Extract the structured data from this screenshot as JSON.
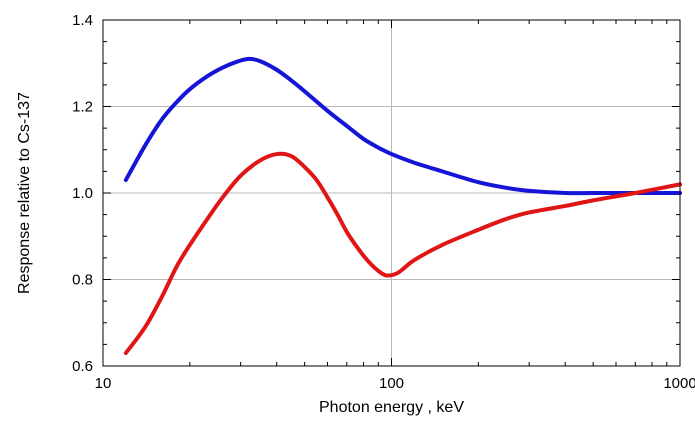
{
  "chart_data": {
    "type": "line",
    "title": "",
    "xlabel": "Photon energy , keV",
    "ylabel": "Response relative to Cs-137",
    "xscale": "log",
    "xlim": [
      10,
      1000
    ],
    "ylim": [
      0.6,
      1.4
    ],
    "grid": true,
    "legend": "none",
    "x_tick_labels": [
      {
        "value": 10,
        "label": "10"
      },
      {
        "value": 100,
        "label": "100"
      },
      {
        "value": 1000,
        "label": "1000"
      }
    ],
    "y_tick_labels": [
      {
        "value": 0.6,
        "label": "0.6"
      },
      {
        "value": 0.8,
        "label": "0.8"
      },
      {
        "value": 1.0,
        "label": "1.0"
      },
      {
        "value": 1.2,
        "label": "1.2"
      },
      {
        "value": 1.4,
        "label": "1.4"
      }
    ],
    "series": [
      {
        "color": "#1515d8",
        "points": [
          [
            12,
            1.03
          ],
          [
            14,
            1.11
          ],
          [
            16,
            1.17
          ],
          [
            18,
            1.21
          ],
          [
            20,
            1.24
          ],
          [
            23,
            1.27
          ],
          [
            26,
            1.29
          ],
          [
            29,
            1.303
          ],
          [
            32,
            1.31
          ],
          [
            35,
            1.305
          ],
          [
            40,
            1.285
          ],
          [
            45,
            1.26
          ],
          [
            50,
            1.235
          ],
          [
            60,
            1.19
          ],
          [
            70,
            1.155
          ],
          [
            80,
            1.125
          ],
          [
            90,
            1.105
          ],
          [
            100,
            1.09
          ],
          [
            120,
            1.07
          ],
          [
            150,
            1.05
          ],
          [
            200,
            1.025
          ],
          [
            250,
            1.012
          ],
          [
            300,
            1.005
          ],
          [
            400,
            1.0
          ],
          [
            500,
            1.0
          ],
          [
            700,
            1.0
          ],
          [
            1000,
            1.0
          ]
        ]
      },
      {
        "color": "#e01515",
        "points": [
          [
            12,
            0.63
          ],
          [
            14,
            0.69
          ],
          [
            16,
            0.76
          ],
          [
            18,
            0.83
          ],
          [
            20,
            0.88
          ],
          [
            23,
            0.94
          ],
          [
            26,
            0.99
          ],
          [
            30,
            1.04
          ],
          [
            35,
            1.075
          ],
          [
            40,
            1.09
          ],
          [
            45,
            1.085
          ],
          [
            50,
            1.06
          ],
          [
            55,
            1.03
          ],
          [
            60,
            0.99
          ],
          [
            65,
            0.95
          ],
          [
            70,
            0.91
          ],
          [
            75,
            0.88
          ],
          [
            80,
            0.855
          ],
          [
            85,
            0.835
          ],
          [
            90,
            0.82
          ],
          [
            95,
            0.81
          ],
          [
            100,
            0.81
          ],
          [
            105,
            0.815
          ],
          [
            110,
            0.825
          ],
          [
            120,
            0.845
          ],
          [
            150,
            0.88
          ],
          [
            200,
            0.915
          ],
          [
            250,
            0.94
          ],
          [
            300,
            0.955
          ],
          [
            400,
            0.97
          ],
          [
            500,
            0.983
          ],
          [
            700,
            1.0
          ],
          [
            1000,
            1.02
          ]
        ]
      }
    ]
  }
}
